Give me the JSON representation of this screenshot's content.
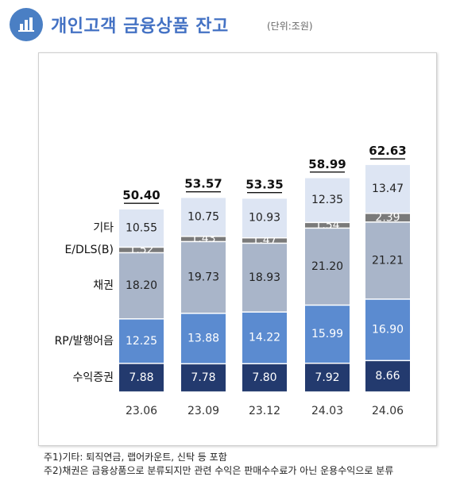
{
  "header": {
    "title": "개인고객 금융상품 잔고",
    "unit": "(단위:조원)",
    "icon": "bar-chart-icon"
  },
  "colors": {
    "accent": "#4472c4",
    "series": [
      "#233a6e",
      "#5b8bd0",
      "#a9b5c9",
      "#7a7a7a",
      "#dde5f3"
    ]
  },
  "chart_data": {
    "type": "bar",
    "stacked": true,
    "categories": [
      "23.06",
      "23.09",
      "23.12",
      "24.03",
      "24.06"
    ],
    "series": [
      {
        "name": "수익증권",
        "values": [
          7.88,
          7.78,
          7.8,
          7.92,
          8.66
        ]
      },
      {
        "name": "RP/발행어음",
        "values": [
          12.25,
          13.88,
          14.22,
          15.99,
          16.9
        ]
      },
      {
        "name": "채권",
        "values": [
          18.2,
          19.73,
          18.93,
          21.2,
          21.21
        ]
      },
      {
        "name": "E/DLS(B)",
        "values": [
          1.52,
          1.43,
          1.47,
          1.54,
          2.39
        ]
      },
      {
        "name": "기타",
        "values": [
          10.55,
          10.75,
          10.93,
          12.35,
          13.47
        ]
      }
    ],
    "totals": [
      50.4,
      53.57,
      53.35,
      58.99,
      62.63
    ],
    "legend_position": "left"
  },
  "notes": [
    "주1)기타: 퇴직연금, 랩어카운트, 신탁 등 포함",
    "주2)채권은 금융상품으로 분류되지만 관련 수익은 판매수수료가 아닌 운용수익으로 분류"
  ]
}
